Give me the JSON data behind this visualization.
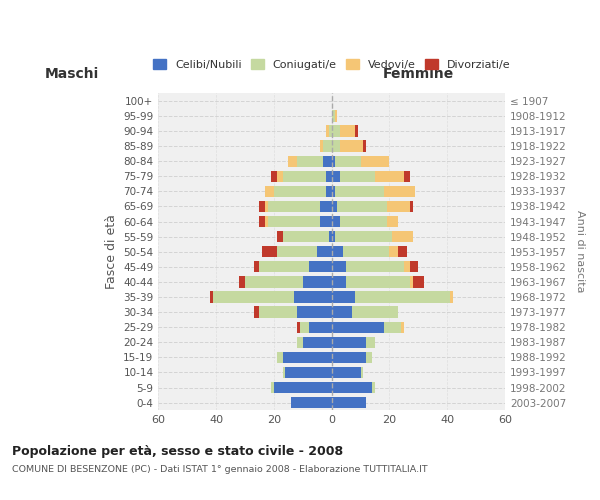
{
  "age_groups": [
    "100+",
    "95-99",
    "90-94",
    "85-89",
    "80-84",
    "75-79",
    "70-74",
    "65-69",
    "60-64",
    "55-59",
    "50-54",
    "45-49",
    "40-44",
    "35-39",
    "30-34",
    "25-29",
    "20-24",
    "15-19",
    "10-14",
    "5-9",
    "0-4"
  ],
  "birth_years": [
    "≤ 1907",
    "1908-1912",
    "1913-1917",
    "1918-1922",
    "1923-1927",
    "1928-1932",
    "1933-1937",
    "1938-1942",
    "1943-1947",
    "1948-1952",
    "1953-1957",
    "1958-1962",
    "1963-1967",
    "1968-1972",
    "1973-1977",
    "1978-1982",
    "1983-1987",
    "1988-1992",
    "1993-1997",
    "1998-2002",
    "2003-2007"
  ],
  "colors": {
    "celibi": "#4472C4",
    "coniugati": "#c5d9a0",
    "vedovi": "#f5c675",
    "divorziati": "#c0392b"
  },
  "maschi": {
    "celibi": [
      0,
      0,
      0,
      0,
      3,
      2,
      2,
      4,
      4,
      1,
      5,
      8,
      10,
      13,
      12,
      8,
      10,
      17,
      16,
      20,
      14
    ],
    "coniugati": [
      0,
      0,
      1,
      3,
      9,
      15,
      18,
      18,
      18,
      16,
      14,
      17,
      20,
      28,
      13,
      3,
      2,
      2,
      1,
      1,
      0
    ],
    "vedovi": [
      0,
      0,
      1,
      1,
      3,
      2,
      3,
      1,
      1,
      0,
      0,
      0,
      0,
      0,
      0,
      0,
      0,
      0,
      0,
      0,
      0
    ],
    "divorziati": [
      0,
      0,
      0,
      0,
      0,
      2,
      0,
      2,
      2,
      2,
      5,
      2,
      2,
      1,
      2,
      1,
      0,
      0,
      0,
      0,
      0
    ]
  },
  "femmine": {
    "celibi": [
      0,
      0,
      0,
      0,
      1,
      3,
      1,
      2,
      3,
      1,
      4,
      5,
      5,
      8,
      7,
      18,
      12,
      12,
      10,
      14,
      12
    ],
    "coniugati": [
      0,
      1,
      3,
      3,
      9,
      12,
      17,
      17,
      16,
      20,
      16,
      20,
      22,
      33,
      16,
      6,
      3,
      2,
      1,
      1,
      0
    ],
    "vedovi": [
      0,
      1,
      5,
      8,
      10,
      10,
      11,
      8,
      4,
      7,
      3,
      2,
      1,
      1,
      0,
      1,
      0,
      0,
      0,
      0,
      0
    ],
    "divorziati": [
      0,
      0,
      1,
      1,
      0,
      2,
      0,
      1,
      0,
      0,
      3,
      3,
      4,
      0,
      0,
      0,
      0,
      0,
      0,
      0,
      0
    ]
  },
  "xlim": 60,
  "title": "Popolazione per età, sesso e stato civile - 2008",
  "subtitle": "COMUNE DI BESENZONE (PC) - Dati ISTAT 1° gennaio 2008 - Elaborazione TUTTITALIA.IT",
  "ylabel_left": "Fasce di età",
  "ylabel_right": "Anni di nascita",
  "xlabel_left": "Maschi",
  "xlabel_right": "Femmine",
  "bg_color": "#f0f0f0",
  "grid_color": "#cccccc"
}
